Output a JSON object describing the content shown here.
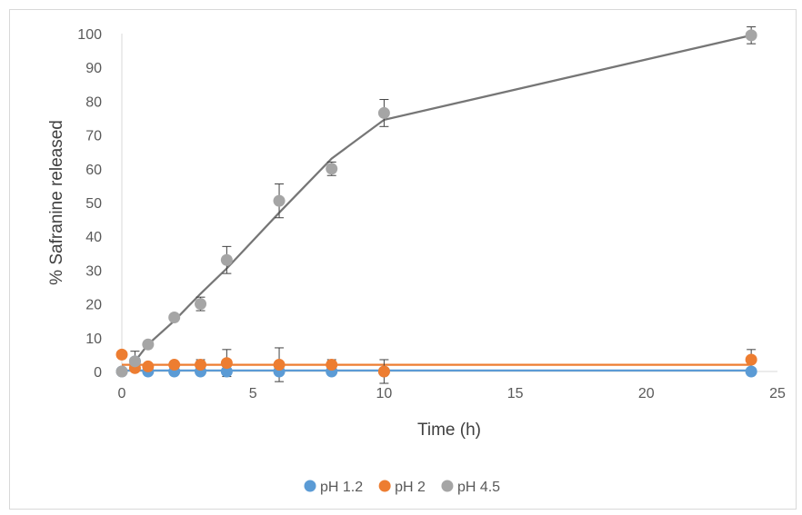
{
  "chart_data": {
    "type": "scatter",
    "title": "",
    "xlabel": "Time (h)",
    "ylabel": "% Safranine  released",
    "xlim": [
      0,
      25
    ],
    "ylim": [
      0,
      100
    ],
    "x_ticks": [
      0,
      5,
      10,
      15,
      20,
      25
    ],
    "y_ticks": [
      0,
      10,
      20,
      30,
      40,
      50,
      60,
      70,
      80,
      90,
      100
    ],
    "grid": false,
    "legend_position": "bottom",
    "series": [
      {
        "name": "pH 1.2",
        "color": "#5b9bd5",
        "points": [
          {
            "x": 0,
            "y": 0,
            "err": 0
          },
          {
            "x": 0.5,
            "y": 3,
            "err": 0
          },
          {
            "x": 1,
            "y": 0,
            "err": 0
          },
          {
            "x": 2,
            "y": 0,
            "err": 0
          },
          {
            "x": 3,
            "y": 0,
            "err": 0
          },
          {
            "x": 4,
            "y": 0,
            "err": 0
          },
          {
            "x": 6,
            "y": 0,
            "err": 0
          },
          {
            "x": 8,
            "y": 0,
            "err": 0
          },
          {
            "x": 10,
            "y": 0,
            "err": 0
          },
          {
            "x": 24,
            "y": 0,
            "err": 0
          }
        ],
        "trend": [
          [
            0,
            0.3
          ],
          [
            24,
            0.3
          ]
        ]
      },
      {
        "name": "pH 2",
        "color": "#ed7d31",
        "points": [
          {
            "x": 0,
            "y": 5,
            "err": 0
          },
          {
            "x": 0.5,
            "y": 1,
            "err": 0
          },
          {
            "x": 1,
            "y": 1.5,
            "err": 0
          },
          {
            "x": 2,
            "y": 2,
            "err": 0
          },
          {
            "x": 3,
            "y": 2,
            "err": 1.5
          },
          {
            "x": 4,
            "y": 2.5,
            "err": 4
          },
          {
            "x": 6,
            "y": 2,
            "err": 5
          },
          {
            "x": 8,
            "y": 2,
            "err": 1.5
          },
          {
            "x": 10,
            "y": 0,
            "err": 3.5
          },
          {
            "x": 24,
            "y": 3.5,
            "err": 3
          }
        ],
        "trend": [
          [
            0,
            2
          ],
          [
            24,
            2
          ]
        ]
      },
      {
        "name": "pH 4.5",
        "color": "#a5a5a5",
        "line_color": "#767676",
        "points": [
          {
            "x": 0,
            "y": 0,
            "err": 0
          },
          {
            "x": 0.5,
            "y": 3,
            "err": 3
          },
          {
            "x": 1,
            "y": 8,
            "err": 0
          },
          {
            "x": 2,
            "y": 16,
            "err": 0
          },
          {
            "x": 3,
            "y": 20,
            "err": 2
          },
          {
            "x": 4,
            "y": 33,
            "err": 4
          },
          {
            "x": 6,
            "y": 50.5,
            "err": 5
          },
          {
            "x": 8,
            "y": 60,
            "err": 2
          },
          {
            "x": 10,
            "y": 76.5,
            "err": 4
          },
          {
            "x": 24,
            "y": 99.5,
            "err": 2.5
          }
        ],
        "trend": [
          [
            0.5,
            3
          ],
          [
            1,
            8
          ],
          [
            2,
            15
          ],
          [
            3,
            23
          ],
          [
            4,
            30.5
          ],
          [
            6,
            47
          ],
          [
            8,
            63
          ],
          [
            10,
            74.5
          ],
          [
            24,
            99.5
          ]
        ]
      }
    ]
  }
}
